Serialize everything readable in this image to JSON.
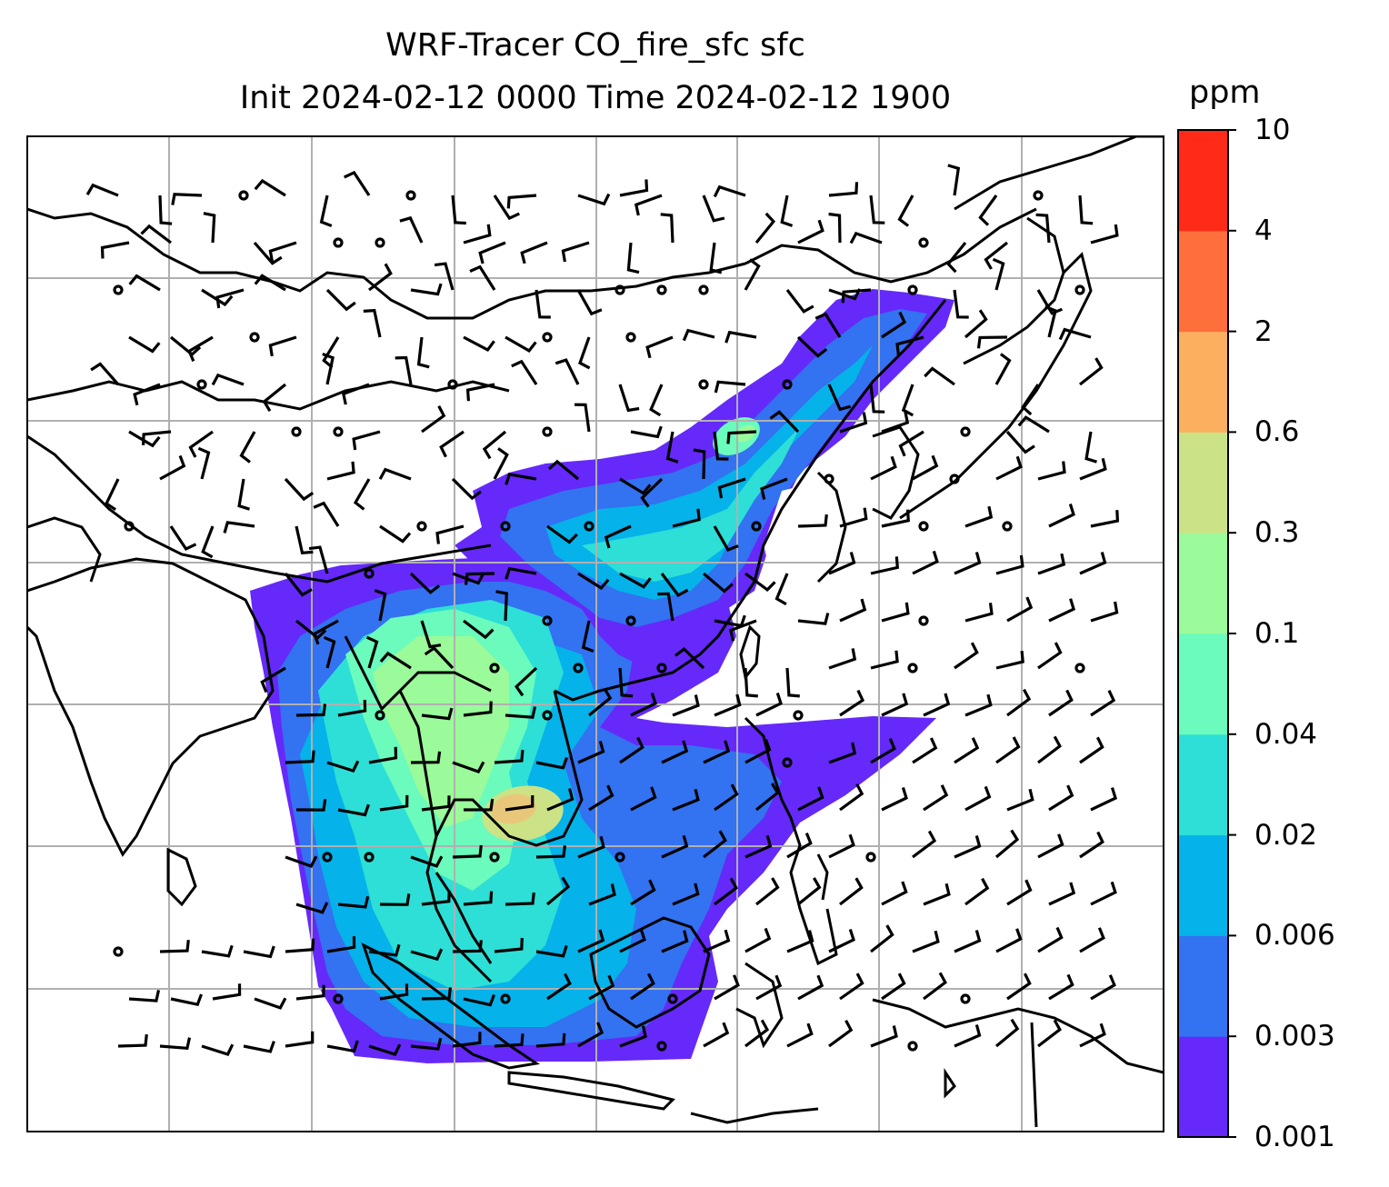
{
  "title": {
    "line1": "WRF-Tracer CO_fire_sfc sfc",
    "line2": "Init 2024-02-12 0000 Time 2024-02-12 1900"
  },
  "colorbar": {
    "unit": "ppm",
    "ticks": [
      "0.001",
      "0.003",
      "0.006",
      "0.02",
      "0.04",
      "0.1",
      "0.3",
      "0.6",
      "2",
      "4",
      "10"
    ],
    "colors": [
      "#6529f9",
      "#3372f0",
      "#05b2e9",
      "#2ddfd6",
      "#6afbbd",
      "#9bfa9a",
      "#cbe386",
      "#fdaf60",
      "#fe6f3c",
      "#ff2a17"
    ]
  },
  "map": {
    "field": "CO_fire_sfc",
    "level": "sfc",
    "gridlines": true,
    "wind_barbs": true,
    "coastlines": true
  }
}
